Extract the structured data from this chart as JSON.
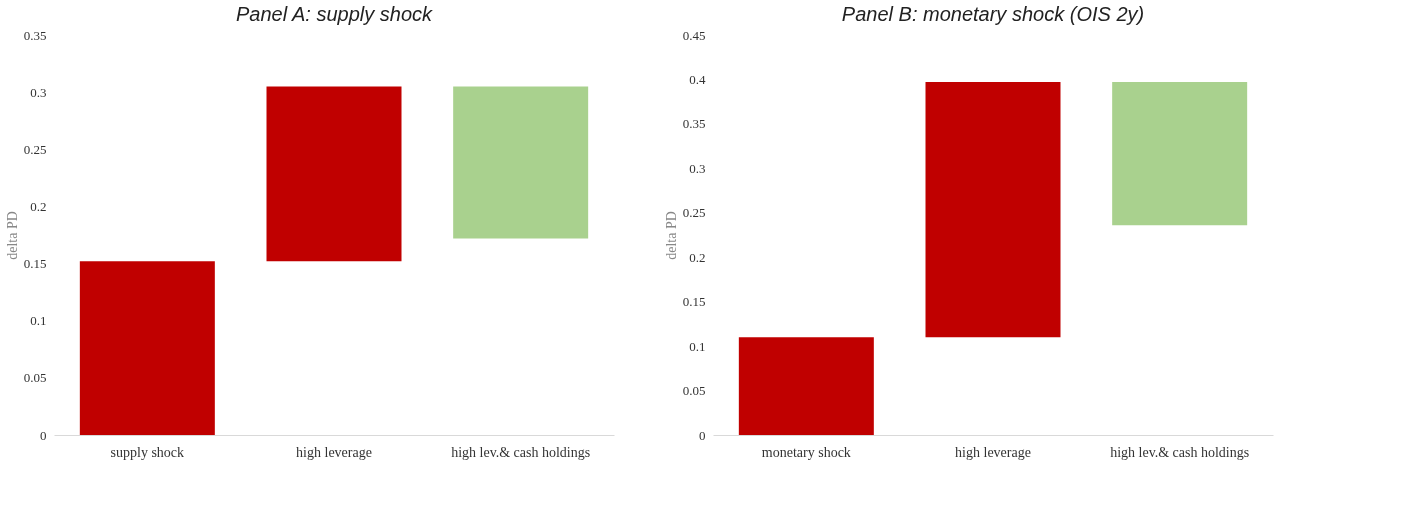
{
  "chart_data": [
    {
      "type": "bar",
      "title": "Panel A: supply shock",
      "ylabel": "delta PD",
      "categories": [
        "supply shock",
        "high leverage",
        "high lev.& cash holdings"
      ],
      "base": [
        0,
        0.152,
        0.305
      ],
      "values": [
        0.152,
        0.153,
        -0.133
      ],
      "colors": [
        "#c00000",
        "#c00000",
        "#a9d18e"
      ],
      "ylim": [
        0,
        0.35
      ],
      "yticks": [
        0,
        0.05,
        0.1,
        0.15,
        0.2,
        0.25,
        0.3,
        0.35
      ]
    },
    {
      "type": "bar",
      "title": "Panel B: monetary shock (OIS 2y)",
      "ylabel": "delta PD",
      "categories": [
        "monetary shock",
        "high leverage",
        "high lev.& cash holdings"
      ],
      "base": [
        0,
        0.11,
        0.397
      ],
      "values": [
        0.11,
        0.287,
        -0.161
      ],
      "colors": [
        "#c00000",
        "#c00000",
        "#a9d18e"
      ],
      "ylim": [
        0,
        0.45
      ],
      "yticks": [
        0,
        0.05,
        0.1,
        0.15,
        0.2,
        0.25,
        0.3,
        0.35,
        0.4,
        0.45
      ]
    }
  ]
}
